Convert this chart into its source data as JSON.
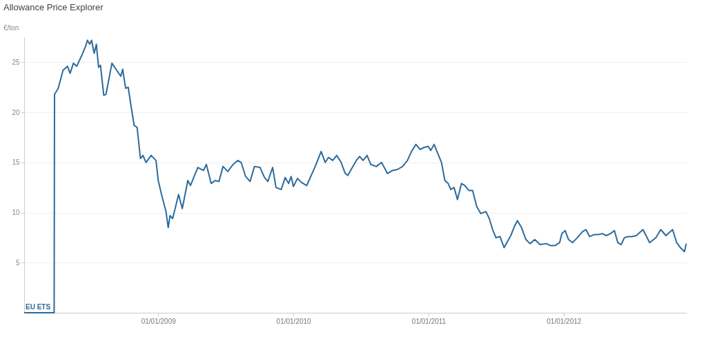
{
  "chart_data": {
    "type": "line",
    "title": "Allowance Price Explorer",
    "ylabel": "€/ton",
    "x": [
      "2008-01-05",
      "2008-03-26",
      "2008-03-27",
      "2008-04-06",
      "2008-04-19",
      "2008-05-01",
      "2008-05-08",
      "2008-05-17",
      "2008-05-26",
      "2008-06-10",
      "2008-06-19",
      "2008-06-24",
      "2008-06-30",
      "2008-07-05",
      "2008-07-12",
      "2008-07-18",
      "2008-07-24",
      "2008-07-29",
      "2008-08-07",
      "2008-08-13",
      "2008-08-29",
      "2008-09-09",
      "2008-09-22",
      "2008-09-27",
      "2008-10-05",
      "2008-10-12",
      "2008-10-21",
      "2008-10-28",
      "2008-11-05",
      "2008-11-14",
      "2008-11-21",
      "2008-11-29",
      "2008-12-13",
      "2008-12-26",
      "2009-01-01",
      "2009-01-10",
      "2009-01-22",
      "2009-01-28",
      "2009-02-02",
      "2009-02-09",
      "2009-02-25",
      "2009-03-07",
      "2009-03-22",
      "2009-03-29",
      "2009-04-18",
      "2009-05-03",
      "2009-05-11",
      "2009-05-24",
      "2009-06-04",
      "2009-06-14",
      "2009-06-25",
      "2009-07-08",
      "2009-07-22",
      "2009-08-04",
      "2009-08-13",
      "2009-08-25",
      "2009-09-06",
      "2009-09-18",
      "2009-10-03",
      "2009-10-15",
      "2009-10-24",
      "2009-11-06",
      "2009-11-15",
      "2009-11-29",
      "2009-12-10",
      "2009-12-19",
      "2009-12-26",
      "2010-01-01",
      "2010-01-12",
      "2010-01-23",
      "2010-02-06",
      "2010-03-01",
      "2010-03-17",
      "2010-03-28",
      "2010-04-06",
      "2010-04-17",
      "2010-04-28",
      "2010-05-10",
      "2010-05-21",
      "2010-05-28",
      "2010-06-06",
      "2010-06-20",
      "2010-06-29",
      "2010-07-08",
      "2010-07-19",
      "2010-07-29",
      "2010-08-13",
      "2010-08-27",
      "2010-09-12",
      "2010-09-26",
      "2010-10-09",
      "2010-10-23",
      "2010-11-05",
      "2010-11-16",
      "2010-11-28",
      "2010-12-09",
      "2010-12-20",
      "2010-12-31",
      "2011-01-07",
      "2011-01-16",
      "2011-01-27",
      "2011-02-05",
      "2011-02-14",
      "2011-02-23",
      "2011-03-02",
      "2011-03-11",
      "2011-03-20",
      "2011-03-31",
      "2011-04-09",
      "2011-04-20",
      "2011-04-30",
      "2011-05-11",
      "2011-05-22",
      "2011-06-05",
      "2011-06-14",
      "2011-06-23",
      "2011-07-02",
      "2011-07-13",
      "2011-07-24",
      "2011-08-02",
      "2011-08-11",
      "2011-08-22",
      "2011-08-29",
      "2011-09-09",
      "2011-09-21",
      "2011-10-02",
      "2011-10-15",
      "2011-10-29",
      "2011-11-15",
      "2011-11-27",
      "2011-12-08",
      "2011-12-21",
      "2011-12-27",
      "2012-01-05",
      "2012-01-14",
      "2012-01-25",
      "2012-02-07",
      "2012-02-21",
      "2012-03-01",
      "2012-03-11",
      "2012-03-23",
      "2012-04-04",
      "2012-04-14",
      "2012-04-25",
      "2012-05-06",
      "2012-05-17",
      "2012-05-26",
      "2012-06-04",
      "2012-06-13",
      "2012-06-22",
      "2012-07-02",
      "2012-07-15",
      "2012-08-02",
      "2012-08-20",
      "2012-09-06",
      "2012-09-19",
      "2012-10-03",
      "2012-10-21",
      "2012-11-01",
      "2012-11-11",
      "2012-11-22",
      "2012-11-27"
    ],
    "series": [
      {
        "name": "EU ETS",
        "color": "#2b6a9b",
        "values": [
          0,
          0,
          21.8,
          22.4,
          24.2,
          24.6,
          23.9,
          24.9,
          24.6,
          25.8,
          26.6,
          27.2,
          26.8,
          27.2,
          25.9,
          26.8,
          24.5,
          24.7,
          21.7,
          21.8,
          24.9,
          24.3,
          23.6,
          24.3,
          22.4,
          22.5,
          20.3,
          18.7,
          18.5,
          15.4,
          15.7,
          15.0,
          15.7,
          15.2,
          13.2,
          11.8,
          10.1,
          8.5,
          9.7,
          9.4,
          11.8,
          10.4,
          13.2,
          12.7,
          14.5,
          14.2,
          14.8,
          12.9,
          13.2,
          13.1,
          14.6,
          14.1,
          14.8,
          15.2,
          15.0,
          13.6,
          13.1,
          14.6,
          14.5,
          13.5,
          13.1,
          14.5,
          12.5,
          12.3,
          13.5,
          12.9,
          13.6,
          12.6,
          13.4,
          13.0,
          12.7,
          14.6,
          16.1,
          15.0,
          15.5,
          15.2,
          15.7,
          15.0,
          13.9,
          13.7,
          14.3,
          15.2,
          15.6,
          15.2,
          15.7,
          14.8,
          14.6,
          15.0,
          13.9,
          14.2,
          14.3,
          14.6,
          15.2,
          16.1,
          16.8,
          16.3,
          16.5,
          16.6,
          16.2,
          16.8,
          15.8,
          15.0,
          13.2,
          12.9,
          12.3,
          12.5,
          11.3,
          12.9,
          12.7,
          12.2,
          12.2,
          10.6,
          9.9,
          10.1,
          9.4,
          8.3,
          7.5,
          7.6,
          6.5,
          7.1,
          7.7,
          8.7,
          9.2,
          8.5,
          7.3,
          6.9,
          7.3,
          6.8,
          6.9,
          6.7,
          6.7,
          7.0,
          7.9,
          8.2,
          7.3,
          7.0,
          7.5,
          8.1,
          8.3,
          7.6,
          7.8,
          7.8,
          7.9,
          7.7,
          7.9,
          8.2,
          7.0,
          6.8,
          7.5,
          7.6,
          7.6,
          7.7,
          8.3,
          7.0,
          7.5,
          8.3,
          7.7,
          8.3,
          7.0,
          6.5,
          6.1,
          6.9
        ]
      }
    ],
    "xlim": [
      "2008-01-05",
      "2012-11-28"
    ],
    "xticks": [
      {
        "value": "2009-01-01",
        "label": "01/01/2009"
      },
      {
        "value": "2010-01-01",
        "label": "01/01/2010"
      },
      {
        "value": "2011-01-01",
        "label": "01/01/2011"
      },
      {
        "value": "2012-01-01",
        "label": "01/01/2012"
      }
    ],
    "ylim": [
      0,
      27.5
    ],
    "yticks": [
      5,
      10,
      15,
      20,
      25
    ],
    "grid": "y",
    "legend": false,
    "marker": "none",
    "line_style": "solid"
  }
}
